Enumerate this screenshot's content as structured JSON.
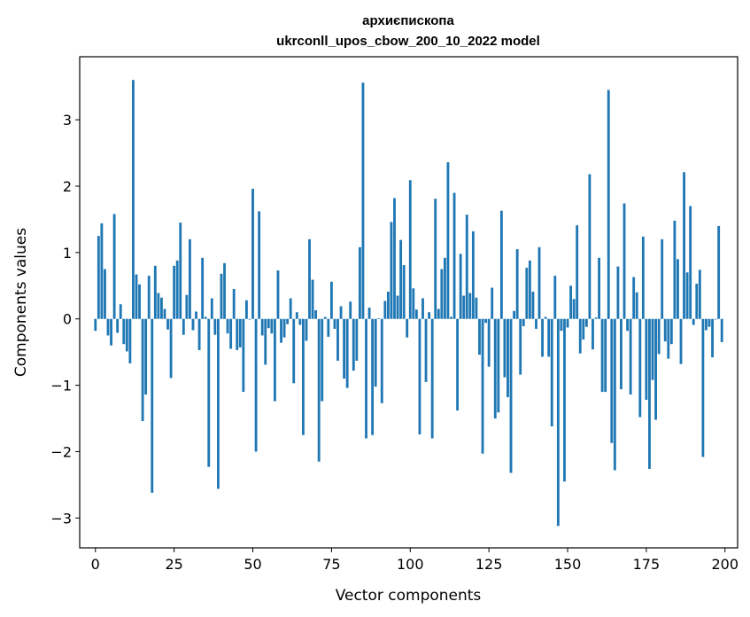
{
  "chart_data": {
    "type": "bar",
    "title": "архиєпископа",
    "subtitle": "ukrconll_upos_cbow_200_10_2022 model",
    "xlabel": "Vector components",
    "ylabel": "Components values",
    "xlim": [
      -5,
      204
    ],
    "ylim": [
      -3.45,
      3.95
    ],
    "xticks": [
      0,
      25,
      50,
      75,
      100,
      125,
      150,
      175,
      200
    ],
    "yticks": [
      -3,
      -2,
      -1,
      0,
      1,
      2,
      3
    ],
    "xtick_labels": [
      "0",
      "25",
      "50",
      "75",
      "100",
      "125",
      "150",
      "175",
      "200"
    ],
    "ytick_labels": [
      "−3",
      "−2",
      "−1",
      "0",
      "1",
      "2",
      "3"
    ],
    "grid": false,
    "bar_color": "#1f77b4",
    "values": [
      -0.18,
      1.25,
      1.44,
      0.75,
      -0.25,
      -0.4,
      1.58,
      -0.21,
      0.22,
      -0.38,
      -0.49,
      -0.67,
      3.6,
      0.67,
      0.52,
      -1.54,
      -1.14,
      0.65,
      -2.62,
      0.8,
      0.39,
      0.32,
      0.15,
      -0.16,
      -0.89,
      0.8,
      0.88,
      1.45,
      -0.24,
      0.36,
      1.2,
      -0.17,
      0.11,
      -0.47,
      0.92,
      0.03,
      -2.23,
      0.31,
      -0.24,
      -2.56,
      0.68,
      0.84,
      -0.22,
      -0.45,
      0.45,
      -0.47,
      -0.43,
      -1.1,
      0.28,
      -0.01,
      1.96,
      -2.0,
      1.62,
      -0.25,
      -0.69,
      -0.14,
      -0.22,
      -1.24,
      0.73,
      -0.36,
      -0.28,
      -0.08,
      0.31,
      -0.97,
      0.1,
      -0.09,
      -1.75,
      -0.33,
      1.2,
      0.59,
      0.13,
      -2.15,
      -1.24,
      0.03,
      -0.27,
      0.56,
      -0.15,
      -0.63,
      0.19,
      -0.9,
      -1.04,
      0.26,
      -0.78,
      -0.63,
      1.08,
      3.56,
      -1.8,
      0.17,
      -1.75,
      -1.02,
      0.01,
      -1.27,
      0.27,
      0.41,
      1.46,
      1.82,
      0.35,
      1.19,
      0.81,
      -0.28,
      2.09,
      0.46,
      0.14,
      -1.74,
      0.31,
      -0.95,
      0.1,
      -1.8,
      1.81,
      0.15,
      0.75,
      0.92,
      2.36,
      0.03,
      1.9,
      -1.38,
      0.98,
      0.35,
      1.57,
      0.39,
      1.32,
      0.32,
      -0.54,
      -2.03,
      -0.06,
      -0.72,
      0.47,
      -1.5,
      -1.41,
      1.63,
      -0.88,
      -1.18,
      -2.32,
      0.12,
      1.05,
      -0.84,
      -0.11,
      0.77,
      0.88,
      0.41,
      -0.15,
      1.08,
      -0.57,
      0.03,
      -0.57,
      -1.62,
      0.65,
      -3.12,
      -0.18,
      -2.45,
      -0.13,
      0.5,
      0.3,
      1.41,
      -0.52,
      -0.31,
      -0.12,
      2.18,
      -0.46,
      0.02,
      0.92,
      -1.1,
      -1.1,
      3.45,
      -1.87,
      -2.28,
      0.79,
      -1.06,
      1.74,
      -0.18,
      -1.14,
      0.63,
      0.4,
      -1.48,
      1.24,
      -1.22,
      -2.26,
      -0.92,
      -1.52,
      -0.53,
      1.2,
      -0.34,
      -0.6,
      -0.38,
      1.48,
      0.9,
      -0.68,
      2.21,
      0.7,
      1.7,
      -0.09,
      0.53,
      0.74,
      -2.08,
      -0.17,
      -0.12,
      -0.58,
      -0.01,
      1.4,
      -0.35
    ]
  }
}
